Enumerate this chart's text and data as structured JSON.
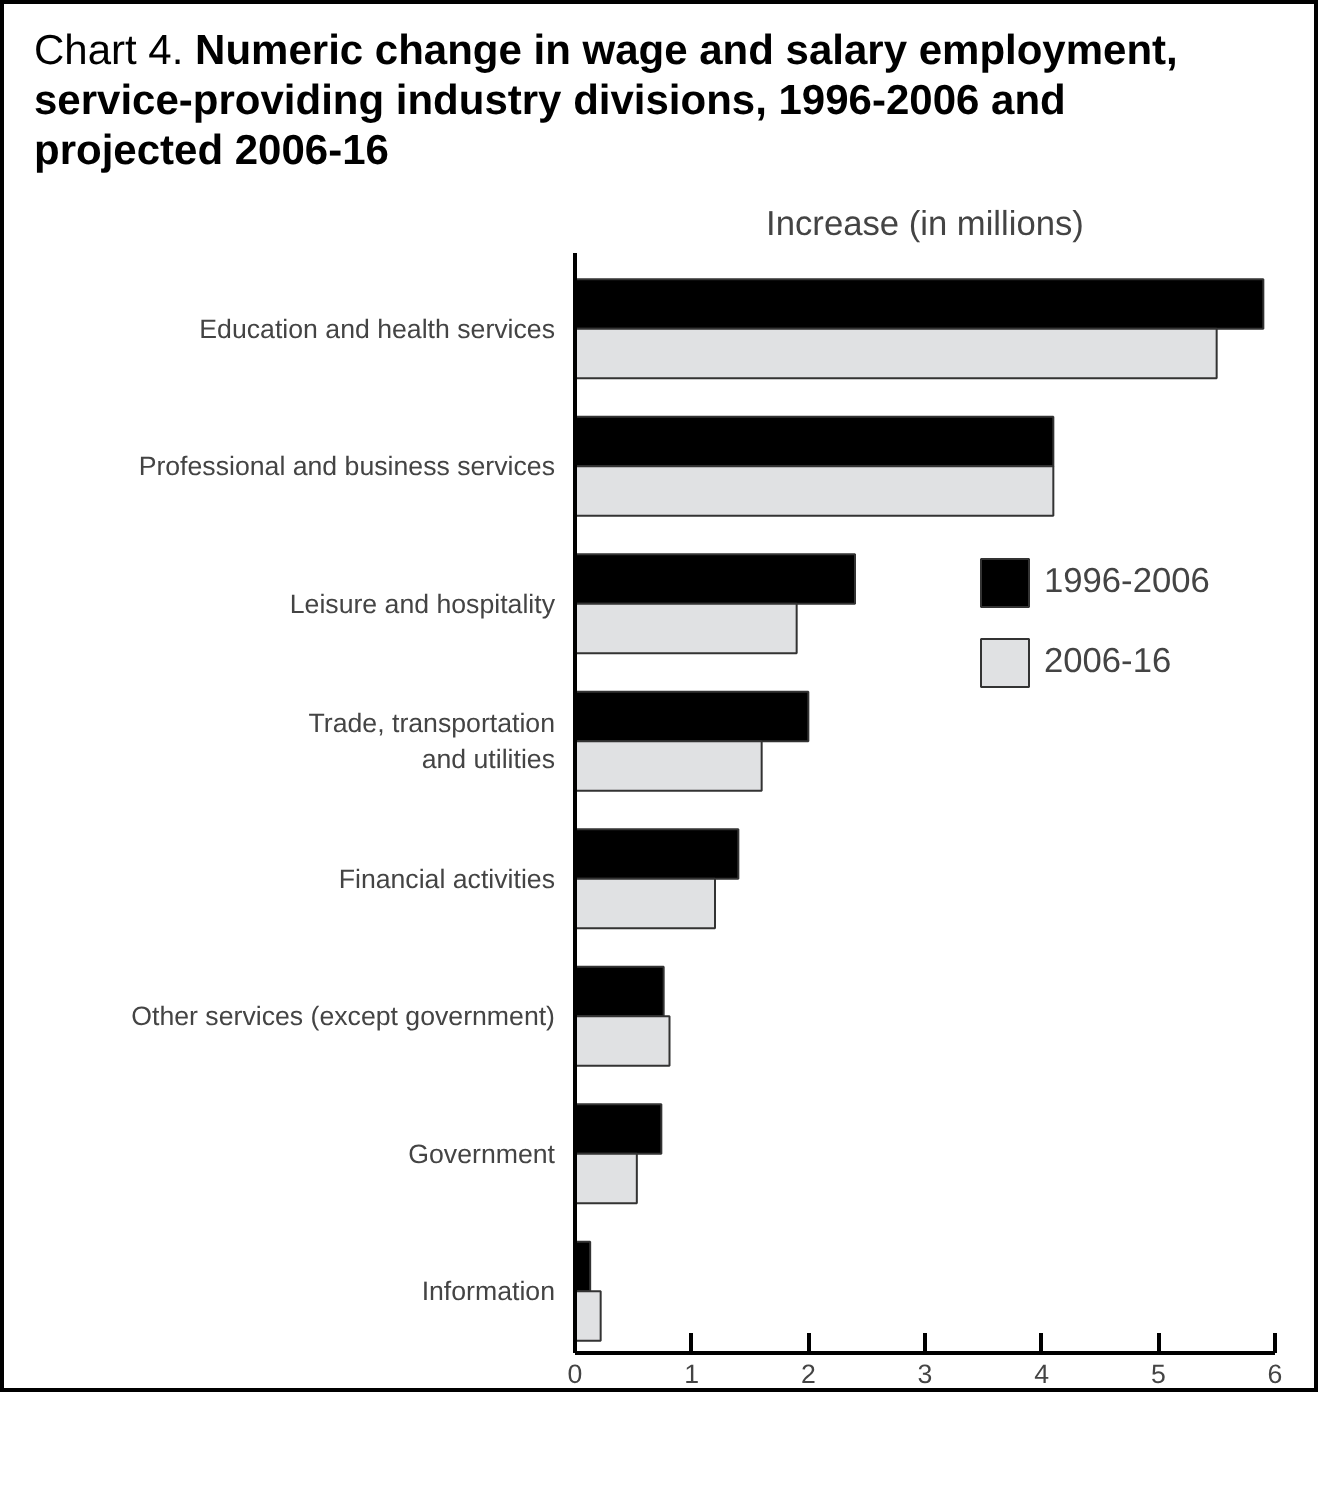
{
  "chart_data": {
    "type": "bar",
    "orientation": "horizontal",
    "title": "Chart 4.",
    "subtitle": "Numeric change in wage and salary employment, service-providing industry divisions, 1996-2006 and projected 2006-16",
    "xlabel": "Increase (in millions)",
    "categories": [
      "Education and health services",
      "Professional and business services",
      "Leisure and hospitality",
      "Trade, transportation and utilities",
      "Financial activities",
      "Other services (except government)",
      "Government",
      "Information"
    ],
    "series": [
      {
        "name": "1996-2006",
        "color": "#000000",
        "values": [
          5.9,
          4.1,
          2.4,
          2.0,
          1.4,
          0.76,
          0.74,
          0.13
        ]
      },
      {
        "name": "2006-16",
        "color": "#e0e1e3",
        "values": [
          5.5,
          4.1,
          1.9,
          1.6,
          1.2,
          0.81,
          0.53,
          0.22
        ]
      }
    ],
    "xlim": [
      0,
      6
    ],
    "xticks": [
      0,
      1,
      2,
      3,
      4,
      5,
      6
    ],
    "grid": false,
    "legend": "right"
  }
}
